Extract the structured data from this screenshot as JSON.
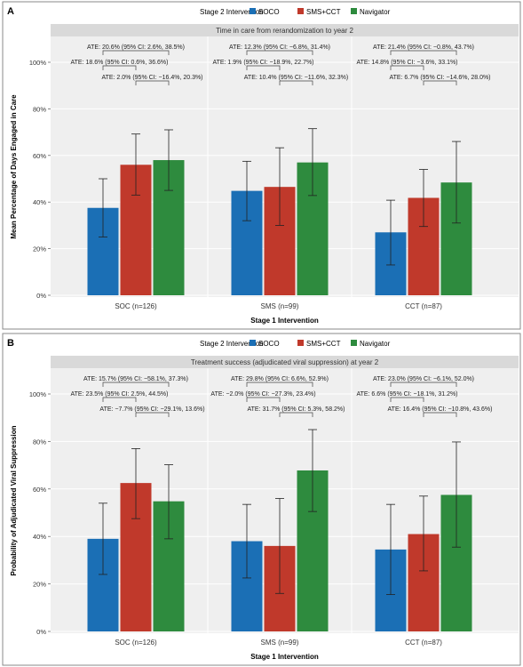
{
  "colors": {
    "soco": "#1B6FB5",
    "sms_cct": "#C0392B",
    "navigator": "#2E8B3E",
    "header_band": "#D9D9D9",
    "plot_bg": "#EFEFEF",
    "frame": "#8A8A8A"
  },
  "chart_data": [
    {
      "type": "bar",
      "panel_label": "A",
      "legend_title": "Stage 2 Intervention",
      "header": "Time in care from rerandomization to year 2",
      "xlabel": "Stage 1 Intervention",
      "ylabel": "Mean Percentage of Days Engaged in Care",
      "ylim": [
        0,
        100
      ],
      "yticks": [
        "0%",
        "20%",
        "40%",
        "60%",
        "80%",
        "100%"
      ],
      "categories": [
        "SOC (n=126)",
        "SMS (n=99)",
        "CCT (n=87)"
      ],
      "series": [
        {
          "name": "SOCO",
          "values": [
            37.5,
            44.8,
            27.0
          ],
          "ci_low": [
            25.0,
            32.0,
            13.0
          ],
          "ci_high": [
            50.0,
            57.5,
            40.8
          ]
        },
        {
          "name": "SMS+CCT",
          "values": [
            56.0,
            46.5,
            41.8
          ],
          "ci_low": [
            43.0,
            30.0,
            29.5
          ],
          "ci_high": [
            69.2,
            63.3,
            54.0
          ]
        },
        {
          "name": "Navigator",
          "values": [
            58.0,
            57.0,
            48.4
          ],
          "ci_low": [
            45.0,
            42.8,
            31.0
          ],
          "ci_high": [
            71.0,
            71.5,
            66.0
          ]
        }
      ],
      "annotations": [
        {
          "group": 0,
          "from": 0,
          "to": 2,
          "level": 1,
          "text": "ATE: 20.6% (95% CI: 2.6%, 38.5%)"
        },
        {
          "group": 0,
          "from": 0,
          "to": 1,
          "level": 2,
          "text": "ATE: 18.6% (95% CI: 0.6%, 36.6%)"
        },
        {
          "group": 0,
          "from": 1,
          "to": 2,
          "level": 3,
          "text": "ATE: 2.0% (95% CI: −16.4%, 20.3%)"
        },
        {
          "group": 1,
          "from": 0,
          "to": 2,
          "level": 1,
          "text": "ATE: 12.3% (95% CI: −6.8%, 31.4%)"
        },
        {
          "group": 1,
          "from": 0,
          "to": 1,
          "level": 2,
          "text": "ATE: 1.9% (95% CI: −18.9%, 22.7%)"
        },
        {
          "group": 1,
          "from": 1,
          "to": 2,
          "level": 3,
          "text": "ATE: 10.4% (95% CI: −11.6%, 32.3%)"
        },
        {
          "group": 2,
          "from": 0,
          "to": 2,
          "level": 1,
          "text": "ATE: 21.4% (95% CI: −0.8%, 43.7%)"
        },
        {
          "group": 2,
          "from": 0,
          "to": 1,
          "level": 2,
          "text": "ATE: 14.8% (95% CI: −3.6%, 33.1%)"
        },
        {
          "group": 2,
          "from": 1,
          "to": 2,
          "level": 3,
          "text": "ATE: 6.7% (95% CI: −14.6%, 28.0%)"
        }
      ]
    },
    {
      "type": "bar",
      "panel_label": "B",
      "legend_title": "Stage 2 Intervention",
      "header": "Treatment success (adjudicated viral suppression) at year 2",
      "xlabel": "Stage 1 Intervention",
      "ylabel": "Probability of Adjudicated Viral Suppression",
      "ylim": [
        0,
        100
      ],
      "yticks": [
        "0%",
        "20%",
        "40%",
        "60%",
        "80%",
        "100%"
      ],
      "categories": [
        "SOC (n=126)",
        "SMS (n=99)",
        "CCT (n=87)"
      ],
      "series": [
        {
          "name": "SOCO",
          "values": [
            39.0,
            38.0,
            34.5
          ],
          "ci_low": [
            24.0,
            22.5,
            15.5
          ],
          "ci_high": [
            54.0,
            53.5,
            53.5
          ]
        },
        {
          "name": "SMS+CCT",
          "values": [
            62.5,
            36.0,
            41.0
          ],
          "ci_low": [
            47.5,
            16.0,
            25.5
          ],
          "ci_high": [
            77.0,
            56.0,
            57.0
          ]
        },
        {
          "name": "Navigator",
          "values": [
            54.8,
            67.8,
            57.5
          ],
          "ci_low": [
            39.0,
            50.5,
            35.5
          ],
          "ci_high": [
            70.2,
            85.0,
            79.8
          ]
        }
      ],
      "annotations": [
        {
          "group": 0,
          "from": 0,
          "to": 2,
          "level": 1,
          "text": "ATE: 15.7% (95% CI: −58.1%, 37.3%)"
        },
        {
          "group": 0,
          "from": 0,
          "to": 1,
          "level": 2,
          "text": "ATE: 23.5% (95% CI: 2.5%, 44.5%)"
        },
        {
          "group": 0,
          "from": 1,
          "to": 2,
          "level": 3,
          "text": "ATE: −7.7% (95% CI: −29.1%, 13.6%)"
        },
        {
          "group": 1,
          "from": 0,
          "to": 2,
          "level": 1,
          "text": "ATE: 29.8% (95% CI: 6.6%, 52.9%)"
        },
        {
          "group": 1,
          "from": 0,
          "to": 1,
          "level": 2,
          "text": "ATE: −2.0% (95% CI: −27.3%, 23.4%)"
        },
        {
          "group": 1,
          "from": 1,
          "to": 2,
          "level": 3,
          "text": "ATE: 31.7% (95% CI: 5.3%, 58.2%)"
        },
        {
          "group": 2,
          "from": 0,
          "to": 2,
          "level": 1,
          "text": "ATE: 23.0% (95% CI: −6.1%, 52.0%)"
        },
        {
          "group": 2,
          "from": 0,
          "to": 1,
          "level": 2,
          "text": "ATE: 6.6% (95% CI: −18.1%, 31.2%)"
        },
        {
          "group": 2,
          "from": 1,
          "to": 2,
          "level": 3,
          "text": "ATE: 16.4% (95% CI: −10.8%, 43.6%)"
        }
      ]
    }
  ]
}
